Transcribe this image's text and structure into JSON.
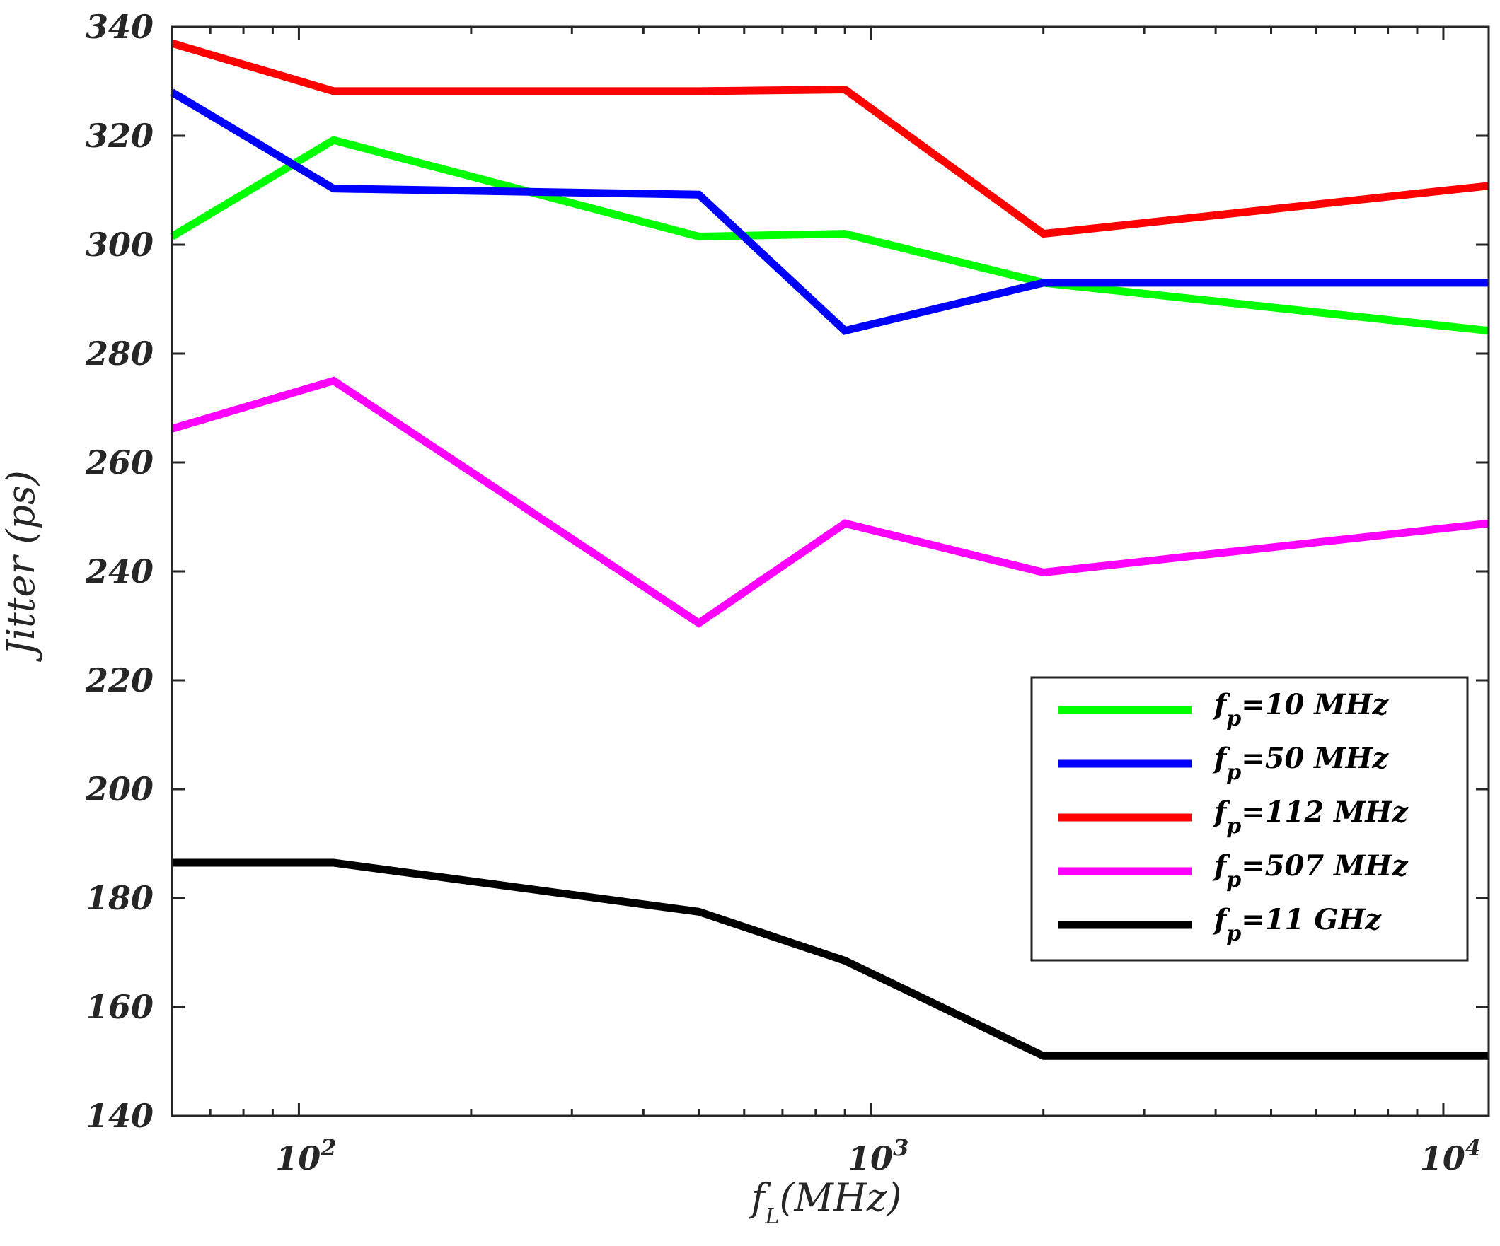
{
  "chart_data": {
    "type": "line",
    "title": "",
    "xlabel": {
      "main": "f",
      "sub": "L",
      "suffix": "(MHz)"
    },
    "ylabel": "Jitter (ps)",
    "xscale": "log",
    "xlim": [
      60,
      12000
    ],
    "ylim": [
      140,
      340
    ],
    "yticks": [
      140,
      160,
      180,
      200,
      220,
      240,
      260,
      280,
      300,
      320,
      340
    ],
    "xticks": [
      {
        "value": 100,
        "base": "10",
        "exp": "2"
      },
      {
        "value": 1000,
        "base": "10",
        "exp": "3"
      },
      {
        "value": 10000,
        "base": "10",
        "exp": "4"
      }
    ],
    "x": [
      60,
      115,
      500,
      900,
      2000,
      12000
    ],
    "series": [
      {
        "name": "f_p=10 MHz",
        "label_main": "f",
        "label_sub": "p",
        "label_rest": "=10 MHz",
        "color": "#00ff00",
        "values": [
          301.5,
          319.2,
          301.5,
          302.0,
          293.0,
          284.2
        ]
      },
      {
        "name": "f_p=50 MHz",
        "label_main": "f",
        "label_sub": "p",
        "label_rest": "=50 MHz",
        "color": "#0000ff",
        "values": [
          328.0,
          310.3,
          309.2,
          284.2,
          293.0,
          293.0
        ]
      },
      {
        "name": "f_p=112 MHz",
        "label_main": "f",
        "label_sub": "p",
        "label_rest": "=112 MHz",
        "color": "#ff0000",
        "values": [
          337.0,
          328.2,
          328.2,
          328.5,
          302.0,
          310.8
        ]
      },
      {
        "name": "f_p=507 MHz",
        "label_main": "f",
        "label_sub": "p",
        "label_rest": "=507 MHz",
        "color": "#ff00ff",
        "values": [
          266.2,
          275.0,
          230.5,
          248.8,
          239.8,
          248.8
        ]
      },
      {
        "name": "f_p=11 GHz",
        "label_main": "f",
        "label_sub": "p",
        "label_rest": "=11 GHz",
        "color": "#000000",
        "values": [
          186.5,
          186.5,
          177.5,
          168.5,
          151.0,
          151.0
        ]
      }
    ],
    "legend_position": "center-right",
    "grid": false
  }
}
